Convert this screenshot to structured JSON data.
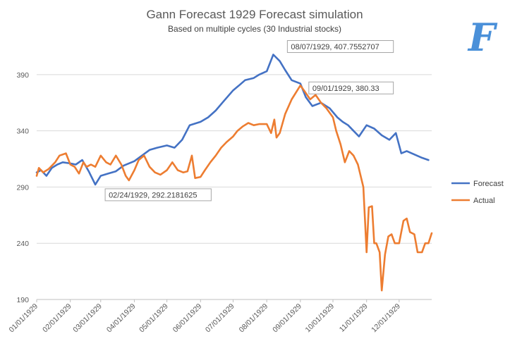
{
  "chart_data": {
    "type": "line",
    "title": "Gann Forecast 1929 Forecast simulation",
    "subtitle": "Based on multiple cycles (30 Industrial stocks)",
    "xlabel": "",
    "ylabel": "",
    "ylim": [
      190,
      420
    ],
    "yticks": [
      "190",
      "240",
      "290",
      "340",
      "390"
    ],
    "xlim": [
      "1929-01-01",
      "1929-12-31"
    ],
    "xticks": [
      "01/01/1929",
      "02/01/1929",
      "03/01/1929",
      "04/01/1929",
      "05/01/1929",
      "06/01/1929",
      "07/01/1929",
      "08/01/1929",
      "09/01/1929",
      "10/01/1929",
      "11/01/1929",
      "12/01/1929"
    ],
    "grid": true,
    "legend_position": "right",
    "series": [
      {
        "name": "Forecast",
        "color": "#4472c4",
        "points": [
          [
            "1929-01-01",
            303
          ],
          [
            "1929-01-05",
            305
          ],
          [
            "1929-01-10",
            300
          ],
          [
            "1929-01-15",
            307
          ],
          [
            "1929-01-20",
            310
          ],
          [
            "1929-01-25",
            312
          ],
          [
            "1929-02-01",
            311
          ],
          [
            "1929-02-06",
            310
          ],
          [
            "1929-02-12",
            314
          ],
          [
            "1929-02-18",
            304
          ],
          [
            "1929-02-24",
            292.22
          ],
          [
            "1929-03-01",
            300
          ],
          [
            "1929-03-08",
            302
          ],
          [
            "1929-03-15",
            304
          ],
          [
            "1929-03-22",
            309
          ],
          [
            "1929-04-01",
            313
          ],
          [
            "1929-04-08",
            318
          ],
          [
            "1929-04-15",
            323
          ],
          [
            "1929-04-22",
            325
          ],
          [
            "1929-05-01",
            327
          ],
          [
            "1929-05-08",
            325
          ],
          [
            "1929-05-15",
            332
          ],
          [
            "1929-05-22",
            345
          ],
          [
            "1929-06-01",
            348
          ],
          [
            "1929-06-08",
            352
          ],
          [
            "1929-06-15",
            358
          ],
          [
            "1929-06-22",
            366
          ],
          [
            "1929-07-01",
            376
          ],
          [
            "1929-07-06",
            380
          ],
          [
            "1929-07-12",
            385
          ],
          [
            "1929-07-20",
            387
          ],
          [
            "1929-07-25",
            390
          ],
          [
            "1929-08-01",
            393
          ],
          [
            "1929-08-07",
            407.76
          ],
          [
            "1929-08-13",
            402
          ],
          [
            "1929-08-18",
            394
          ],
          [
            "1929-08-24",
            385
          ],
          [
            "1929-09-01",
            382
          ],
          [
            "1929-09-06",
            370
          ],
          [
            "1929-09-12",
            362
          ],
          [
            "1929-09-20",
            365
          ],
          [
            "1929-09-28",
            360
          ],
          [
            "1929-10-05",
            352
          ],
          [
            "1929-10-10",
            348
          ],
          [
            "1929-10-15",
            345
          ],
          [
            "1929-10-20",
            340
          ],
          [
            "1929-10-25",
            335
          ],
          [
            "1929-11-01",
            345
          ],
          [
            "1929-11-08",
            342
          ],
          [
            "1929-11-15",
            336
          ],
          [
            "1929-11-22",
            332
          ],
          [
            "1929-11-28",
            338
          ],
          [
            "1929-12-03",
            320
          ],
          [
            "1929-12-08",
            322
          ],
          [
            "1929-12-15",
            319
          ],
          [
            "1929-12-22",
            316
          ],
          [
            "1929-12-28",
            314
          ]
        ]
      },
      {
        "name": "Actual",
        "color": "#ed7d31",
        "points": [
          [
            "1929-01-01",
            300
          ],
          [
            "1929-01-03",
            307
          ],
          [
            "1929-01-07",
            303
          ],
          [
            "1929-01-12",
            306
          ],
          [
            "1929-01-18",
            312
          ],
          [
            "1929-01-22",
            318
          ],
          [
            "1929-01-28",
            320
          ],
          [
            "1929-02-01",
            310
          ],
          [
            "1929-02-05",
            308
          ],
          [
            "1929-02-09",
            302
          ],
          [
            "1929-02-13",
            312
          ],
          [
            "1929-02-16",
            308
          ],
          [
            "1929-02-20",
            310
          ],
          [
            "1929-02-24",
            308
          ],
          [
            "1929-03-01",
            318
          ],
          [
            "1929-03-06",
            312
          ],
          [
            "1929-03-10",
            310
          ],
          [
            "1929-03-15",
            318
          ],
          [
            "1929-03-20",
            310
          ],
          [
            "1929-03-24",
            300
          ],
          [
            "1929-03-27",
            296
          ],
          [
            "1929-04-01",
            305
          ],
          [
            "1929-04-05",
            314
          ],
          [
            "1929-04-10",
            318
          ],
          [
            "1929-04-15",
            308
          ],
          [
            "1929-04-20",
            303
          ],
          [
            "1929-04-25",
            301
          ],
          [
            "1929-05-01",
            305
          ],
          [
            "1929-05-06",
            312
          ],
          [
            "1929-05-11",
            305
          ],
          [
            "1929-05-16",
            303
          ],
          [
            "1929-05-20",
            304
          ],
          [
            "1929-05-24",
            318
          ],
          [
            "1929-05-27",
            298
          ],
          [
            "1929-06-01",
            299
          ],
          [
            "1929-06-05",
            305
          ],
          [
            "1929-06-10",
            312
          ],
          [
            "1929-06-15",
            318
          ],
          [
            "1929-06-20",
            325
          ],
          [
            "1929-06-25",
            330
          ],
          [
            "1929-07-01",
            335
          ],
          [
            "1929-07-05",
            340
          ],
          [
            "1929-07-10",
            344
          ],
          [
            "1929-07-15",
            347
          ],
          [
            "1929-07-20",
            345
          ],
          [
            "1929-07-25",
            346
          ],
          [
            "1929-08-01",
            346
          ],
          [
            "1929-08-05",
            338
          ],
          [
            "1929-08-08",
            350
          ],
          [
            "1929-08-10",
            334
          ],
          [
            "1929-08-13",
            338
          ],
          [
            "1929-08-18",
            355
          ],
          [
            "1929-08-24",
            368
          ],
          [
            "1929-09-01",
            380.33
          ],
          [
            "1929-09-05",
            375
          ],
          [
            "1929-09-10",
            368
          ],
          [
            "1929-09-15",
            372
          ],
          [
            "1929-09-20",
            365
          ],
          [
            "1929-09-25",
            360
          ],
          [
            "1929-10-01",
            352
          ],
          [
            "1929-10-04",
            340
          ],
          [
            "1929-10-08",
            328
          ],
          [
            "1929-10-12",
            312
          ],
          [
            "1929-10-16",
            322
          ],
          [
            "1929-10-20",
            318
          ],
          [
            "1929-10-24",
            310
          ],
          [
            "1929-10-29",
            290
          ],
          [
            "1929-11-01",
            232
          ],
          [
            "1929-11-03",
            272
          ],
          [
            "1929-11-06",
            273
          ],
          [
            "1929-11-08",
            240
          ],
          [
            "1929-11-10",
            240
          ],
          [
            "1929-11-13",
            232
          ],
          [
            "1929-11-15",
            198
          ],
          [
            "1929-11-18",
            230
          ],
          [
            "1929-11-21",
            246
          ],
          [
            "1929-11-24",
            248
          ],
          [
            "1929-11-27",
            240
          ],
          [
            "1929-12-01",
            240
          ],
          [
            "1929-12-05",
            260
          ],
          [
            "1929-12-08",
            262
          ],
          [
            "1929-12-11",
            250
          ],
          [
            "1929-12-15",
            248
          ],
          [
            "1929-12-18",
            232
          ],
          [
            "1929-12-22",
            232
          ],
          [
            "1929-12-25",
            240
          ],
          [
            "1929-12-28",
            240
          ],
          [
            "1929-12-31",
            249
          ]
        ]
      }
    ],
    "annotations": [
      {
        "series": 0,
        "date": "1929-08-07",
        "label": "08/07/1929, 407.7552707"
      },
      {
        "series": 1,
        "date": "1929-09-01",
        "label": "09/01/1929, 380.33"
      },
      {
        "series": 0,
        "date": "1929-02-24",
        "label": "02/24/1929, 292.2181625"
      }
    ]
  },
  "logo": {
    "letter": "F",
    "color": "#4a90d9"
  }
}
